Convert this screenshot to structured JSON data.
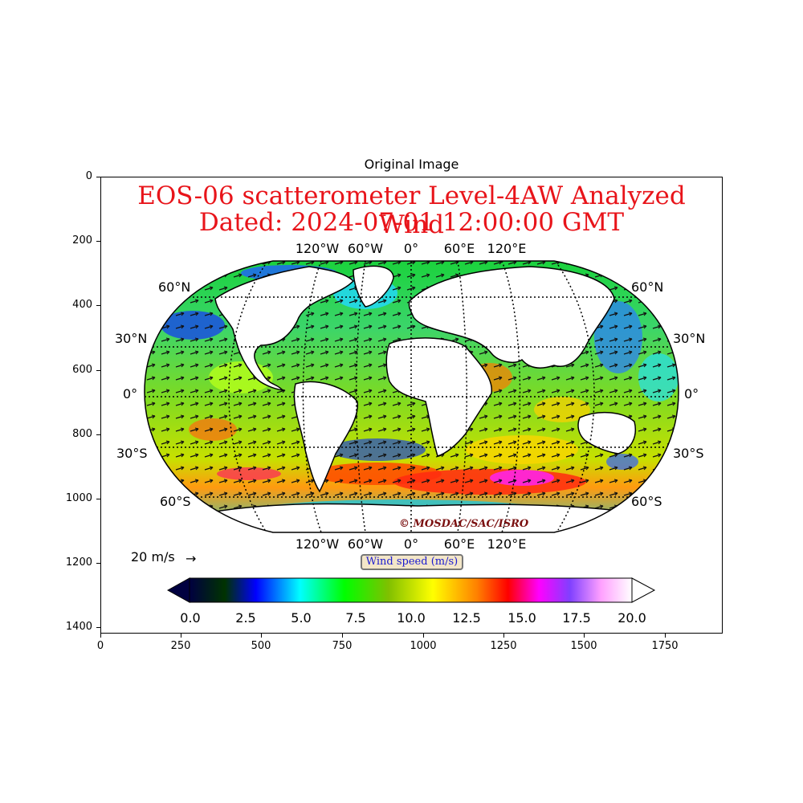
{
  "figure_title": "Original Image",
  "axes": {
    "y_ticks": [
      "0",
      "200",
      "400",
      "600",
      "800",
      "1000",
      "1200",
      "1400"
    ],
    "x_ticks": [
      "0",
      "250",
      "500",
      "750",
      "1000",
      "1250",
      "1500",
      "1750"
    ]
  },
  "map": {
    "title_line1": "EOS-06 scatterometer Level-4AW Analyzed Wind",
    "title_line2": "Dated: 2024-07-01 12:00:00 GMT",
    "lon_labels_top": [
      "120°W",
      "60°W",
      "0°",
      "60°E",
      "120°E"
    ],
    "lon_labels_bottom": [
      "120°W",
      "60°W",
      "0°",
      "60°E",
      "120°E"
    ],
    "lat_labels": [
      "60°N",
      "30°N",
      "0°",
      "30°S",
      "60°S"
    ],
    "credit": "© MOSDAC/SAC/ISRO",
    "reference_vector_label": "20 m/s",
    "reference_arrow": "→"
  },
  "colorbar": {
    "label": "Wind speed (m/s)",
    "ticks": [
      "0.0",
      "2.5",
      "5.0",
      "7.5",
      "10.0",
      "12.5",
      "15.0",
      "17.5",
      "20.0"
    ],
    "min": 0,
    "max": 20,
    "colors": [
      "#000040",
      "#003300",
      "#0000ff",
      "#00ffff",
      "#00ff00",
      "#80c000",
      "#ffff00",
      "#ff8000",
      "#ff0000",
      "#ff00ff",
      "#8040ff",
      "#ffa0ff",
      "#ffffff"
    ]
  },
  "colors": {
    "title": "#e8141a",
    "credit": "#7a1010",
    "colorbar_label_text": "#1a1ad0",
    "colorbar_label_bg": "#f3e6c8"
  }
}
